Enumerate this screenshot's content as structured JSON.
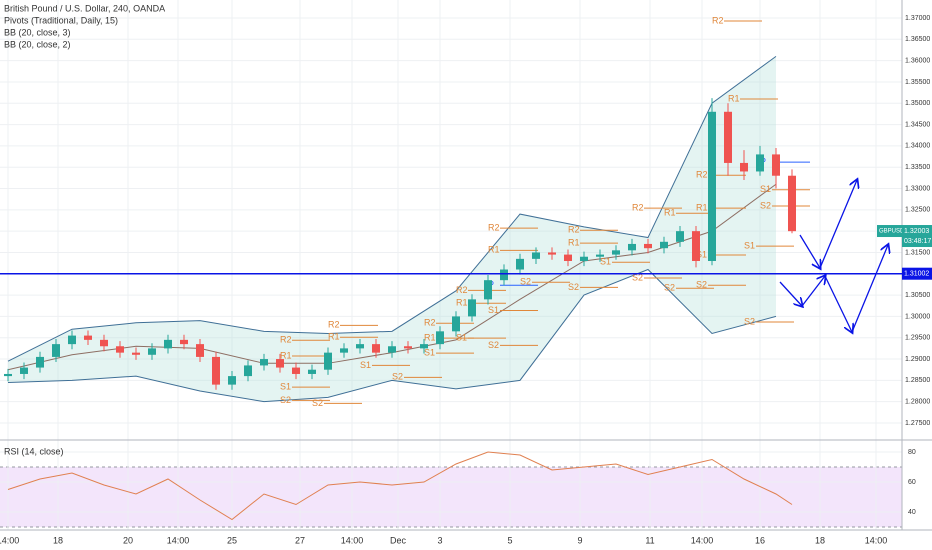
{
  "chart_data": {
    "type": "candlestick",
    "title": "British Pound / U.S. Dollar, 240, OANDA",
    "indicators": [
      "Pivots (Traditional, Daily, 15)",
      "BB (20, close, 3)",
      "BB (20, close, 2)"
    ],
    "up_color": "#26a69a",
    "down_color": "#ef5350",
    "x": [
      0,
      1,
      2,
      3,
      4,
      5,
      6,
      7,
      8,
      9,
      10,
      11,
      12,
      13,
      14,
      15,
      16,
      17,
      18,
      19,
      20,
      21,
      22,
      23,
      24,
      25,
      26,
      27,
      28,
      29,
      30,
      31,
      32,
      33,
      34,
      35,
      36,
      37,
      38,
      39,
      40,
      41,
      42,
      43,
      44,
      45,
      46,
      47,
      48,
      49
    ],
    "open": [
      1.286,
      1.2865,
      1.288,
      1.2905,
      1.2935,
      1.2955,
      1.2945,
      1.293,
      1.2915,
      1.291,
      1.2925,
      1.2945,
      1.2935,
      1.2905,
      1.284,
      1.286,
      1.2885,
      1.29,
      1.288,
      1.2865,
      1.2875,
      1.2915,
      1.2925,
      1.2935,
      1.2915,
      1.293,
      1.2925,
      1.2935,
      1.2965,
      1.3,
      1.304,
      1.3085,
      1.311,
      1.3135,
      1.315,
      1.3145,
      1.313,
      1.314,
      1.3145,
      1.3155,
      1.317,
      1.316,
      1.3175,
      1.32,
      1.313,
      1.348,
      1.336,
      1.334,
      1.338,
      1.333
    ],
    "high": [
      1.2877,
      1.2892,
      1.2917,
      1.2947,
      1.2967,
      1.2967,
      1.2957,
      1.2942,
      1.2927,
      1.2937,
      1.2957,
      1.2957,
      1.2947,
      1.2917,
      1.2872,
      1.2897,
      1.2912,
      1.2912,
      1.2892,
      1.2887,
      1.2927,
      1.2937,
      1.2947,
      1.2947,
      1.2942,
      1.2942,
      1.2947,
      1.2977,
      1.3012,
      1.3052,
      1.3097,
      1.3122,
      1.3147,
      1.3162,
      1.3162,
      1.3157,
      1.3152,
      1.3157,
      1.3167,
      1.3182,
      1.3182,
      1.3187,
      1.3212,
      1.3212,
      1.3512,
      1.35,
      1.339,
      1.34,
      1.3395,
      1.3345
    ],
    "low": [
      1.2848,
      1.2853,
      1.2868,
      1.2893,
      1.2923,
      1.2933,
      1.2918,
      1.2903,
      1.2898,
      1.2898,
      1.2913,
      1.2923,
      1.2893,
      1.2828,
      1.2828,
      1.2848,
      1.2873,
      1.2868,
      1.2853,
      1.2853,
      1.2863,
      1.2903,
      1.2913,
      1.2903,
      1.2903,
      1.2913,
      1.2913,
      1.2923,
      1.2953,
      1.2988,
      1.3028,
      1.3073,
      1.3098,
      1.3123,
      1.3133,
      1.3118,
      1.3118,
      1.3128,
      1.3133,
      1.3143,
      1.3148,
      1.3148,
      1.3163,
      1.3115,
      1.312,
      1.333,
      1.332,
      1.333,
      1.33,
      1.3195
    ],
    "close": [
      1.2865,
      1.288,
      1.2905,
      1.2935,
      1.2955,
      1.2945,
      1.293,
      1.2915,
      1.291,
      1.2925,
      1.2945,
      1.2935,
      1.2905,
      1.284,
      1.286,
      1.2885,
      1.29,
      1.288,
      1.2865,
      1.2875,
      1.2915,
      1.2925,
      1.2935,
      1.2915,
      1.293,
      1.2925,
      1.2935,
      1.2965,
      1.3,
      1.304,
      1.3085,
      1.311,
      1.3135,
      1.315,
      1.3145,
      1.313,
      1.314,
      1.3145,
      1.3155,
      1.317,
      1.316,
      1.3175,
      1.32,
      1.313,
      1.348,
      1.336,
      1.334,
      1.338,
      1.333,
      1.32
    ],
    "xlim": [
      -0.5,
      55.875
    ],
    "xticks": [
      {
        "value": 0,
        "label": "14:00"
      },
      {
        "value": 3.125,
        "label": "18"
      },
      {
        "value": 7.5,
        "label": "20"
      },
      {
        "value": 10.625,
        "label": "14:00"
      },
      {
        "value": 14,
        "label": "25"
      },
      {
        "value": 18.25,
        "label": "27"
      },
      {
        "value": 21.5,
        "label": "14:00"
      },
      {
        "value": 24.375,
        "label": "Dec"
      },
      {
        "value": 27,
        "label": "3"
      },
      {
        "value": 31.375,
        "label": "5"
      },
      {
        "value": 35.75,
        "label": "9"
      },
      {
        "value": 40.125,
        "label": "11"
      },
      {
        "value": 43.375,
        "label": "14:00"
      },
      {
        "value": 47,
        "label": "16"
      },
      {
        "value": 50.75,
        "label": "18"
      },
      {
        "value": 54.25,
        "label": "14:00"
      }
    ],
    "ylim": [
      1.27101,
      1.37422
    ],
    "yticks": [
      {
        "value": 1.275,
        "label": "1.27500"
      },
      {
        "value": 1.28,
        "label": "1.28000"
      },
      {
        "value": 1.285,
        "label": "1.28500"
      },
      {
        "value": 1.29,
        "label": "1.29000"
      },
      {
        "value": 1.295,
        "label": "1.29500"
      },
      {
        "value": 1.3,
        "label": "1.30000"
      },
      {
        "value": 1.305,
        "label": "1.30500"
      },
      {
        "value": 1.31,
        "label": "1.31000"
      },
      {
        "value": 1.315,
        "label": "1.31500"
      },
      {
        "value": 1.32,
        "label": "1.32000"
      },
      {
        "value": 1.325,
        "label": "1.32500"
      },
      {
        "value": 1.33,
        "label": "1.33000"
      },
      {
        "value": 1.335,
        "label": "1.33500"
      },
      {
        "value": 1.34,
        "label": "1.34000"
      },
      {
        "value": 1.345,
        "label": "1.34500"
      },
      {
        "value": 1.35,
        "label": "1.35000"
      },
      {
        "value": 1.355,
        "label": "1.35500"
      },
      {
        "value": 1.36,
        "label": "1.36000"
      },
      {
        "value": 1.365,
        "label": "1.36500"
      },
      {
        "value": 1.37,
        "label": "1.37000"
      }
    ],
    "bands": {
      "x": [
        0,
        4,
        8,
        12,
        16,
        20,
        24,
        28,
        32,
        36,
        40,
        44,
        48
      ],
      "upper": [
        1.2895,
        1.297,
        1.2985,
        1.299,
        1.2965,
        1.296,
        1.2965,
        1.306,
        1.324,
        1.321,
        1.3185,
        1.35,
        1.361
      ],
      "middle": [
        1.2875,
        1.291,
        1.293,
        1.2925,
        1.289,
        1.289,
        1.2915,
        1.2945,
        1.304,
        1.313,
        1.315,
        1.32,
        1.331
      ],
      "lower": [
        1.2845,
        1.285,
        1.286,
        1.2825,
        1.28,
        1.281,
        1.285,
        1.283,
        1.285,
        1.305,
        1.311,
        1.296,
        1.3
      ]
    },
    "pivots": [
      {
        "label": "R2",
        "x": 44,
        "value": 1.3693
      },
      {
        "label": "R1",
        "x": 45,
        "value": 1.351
      },
      {
        "label": "P",
        "x": 47,
        "value": 1.3362
      },
      {
        "label": "S1",
        "x": 46,
        "value": 1.3165
      },
      {
        "label": "S2",
        "x": 46,
        "value": 1.2987
      },
      {
        "label": "R2",
        "x": 43,
        "value": 1.3331
      },
      {
        "label": "R1",
        "x": 43,
        "value": 1.3254
      },
      {
        "label": "S1",
        "x": 47,
        "value": 1.3297
      },
      {
        "label": "S2",
        "x": 47,
        "value": 1.3259
      },
      {
        "label": "S2",
        "x": 43,
        "value": 1.3073
      },
      {
        "label": "S1",
        "x": 43,
        "value": 1.3144
      },
      {
        "label": "R2",
        "x": 39,
        "value": 1.3254
      },
      {
        "label": "R1",
        "x": 41,
        "value": 1.3242
      },
      {
        "label": "S2",
        "x": 39,
        "value": 1.309
      },
      {
        "label": "S2",
        "x": 41,
        "value": 1.3066
      },
      {
        "label": "R2",
        "x": 35,
        "value": 1.3202
      },
      {
        "label": "R1",
        "x": 35,
        "value": 1.3172
      },
      {
        "label": "S1",
        "x": 37,
        "value": 1.3127
      },
      {
        "label": "S2",
        "x": 35,
        "value": 1.3068
      },
      {
        "label": "R2",
        "x": 30,
        "value": 1.3207
      },
      {
        "label": "R1",
        "x": 30,
        "value": 1.3155
      },
      {
        "label": "P",
        "x": 30,
        "value": 1.3073
      },
      {
        "label": "S2",
        "x": 32,
        "value": 1.308
      },
      {
        "label": "R2",
        "x": 28,
        "value": 1.3061
      },
      {
        "label": "R1",
        "x": 28,
        "value": 1.3031
      },
      {
        "label": "S1",
        "x": 30,
        "value": 1.3014
      },
      {
        "label": "S2",
        "x": 30,
        "value": 1.2932
      },
      {
        "label": "S1",
        "x": 28,
        "value": 1.2949
      },
      {
        "label": "R2",
        "x": 20,
        "value": 1.2979
      },
      {
        "label": "R1",
        "x": 20,
        "value": 1.2951
      },
      {
        "label": "S1",
        "x": 22,
        "value": 1.2885
      },
      {
        "label": "S2",
        "x": 24,
        "value": 1.2857
      },
      {
        "label": "R2",
        "x": 17,
        "value": 1.2944
      },
      {
        "label": "R1",
        "x": 17,
        "value": 1.2907
      },
      {
        "label": "S1",
        "x": 17,
        "value": 1.2834
      },
      {
        "label": "S2",
        "x": 17,
        "value": 1.2803
      },
      {
        "label": "S2",
        "x": 19,
        "value": 1.2796
      },
      {
        "label": "R1",
        "x": 26,
        "value": 1.2949
      },
      {
        "label": "S1",
        "x": 26,
        "value": 1.2914
      },
      {
        "label": "R2",
        "x": 26,
        "value": 1.2984
      }
    ],
    "pivot_color": "#e0873a",
    "pivot_p_color": "#2962ff",
    "hline": {
      "value": 1.31002,
      "label": "1.31002",
      "color": "#0a14e6"
    },
    "price_tag": {
      "name": "GBPUSD",
      "value": 1.32003,
      "countdown": "03:48:17"
    },
    "rsi": {
      "title": "RSI (14, close)",
      "color": "#e08050",
      "x": [
        0,
        2,
        4,
        6,
        8,
        10,
        12,
        14,
        16,
        18,
        20,
        22,
        24,
        26,
        28,
        30,
        32,
        34,
        36,
        38,
        40,
        42,
        44,
        46,
        48,
        49
      ],
      "values": [
        55,
        62,
        66,
        58,
        52,
        62,
        48,
        35,
        52,
        45,
        58,
        60,
        58,
        60,
        72,
        80,
        78,
        68,
        70,
        72,
        65,
        70,
        75,
        62,
        52,
        45
      ],
      "ylim": [
        28,
        88
      ],
      "yticks": [
        40,
        60,
        80
      ],
      "band": [
        30,
        70
      ]
    }
  }
}
